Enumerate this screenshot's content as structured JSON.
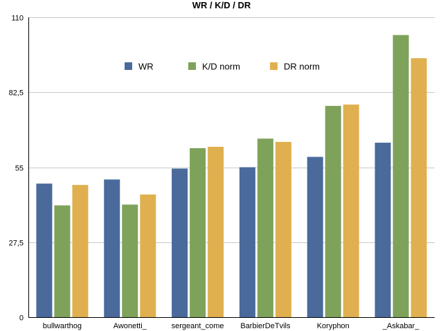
{
  "chart_data": {
    "type": "bar",
    "title": "WR / K/D / DR",
    "xlabel": "",
    "ylabel": "",
    "categories": [
      "bullwarthog",
      "Awonetti_",
      "sergeant_come",
      "BarbierDeTvils",
      "Koryphon",
      "_Askabar_"
    ],
    "series": [
      {
        "name": "WR",
        "color": "#4a6a9c",
        "values": [
          49,
          50.5,
          54.5,
          55,
          58.8,
          64
        ]
      },
      {
        "name": "K/D norm",
        "color": "#7ea25a",
        "values": [
          41,
          41.3,
          62,
          65.5,
          77.5,
          103.5
        ]
      },
      {
        "name": "DR norm",
        "color": "#e0b050",
        "values": [
          48.5,
          45,
          62.5,
          64.3,
          78,
          95
        ]
      }
    ],
    "yticks": [
      "0",
      "27,5",
      "55",
      "82,5",
      "110"
    ],
    "ylim": [
      0,
      110
    ],
    "grid": true,
    "legend_position": "top-center"
  }
}
